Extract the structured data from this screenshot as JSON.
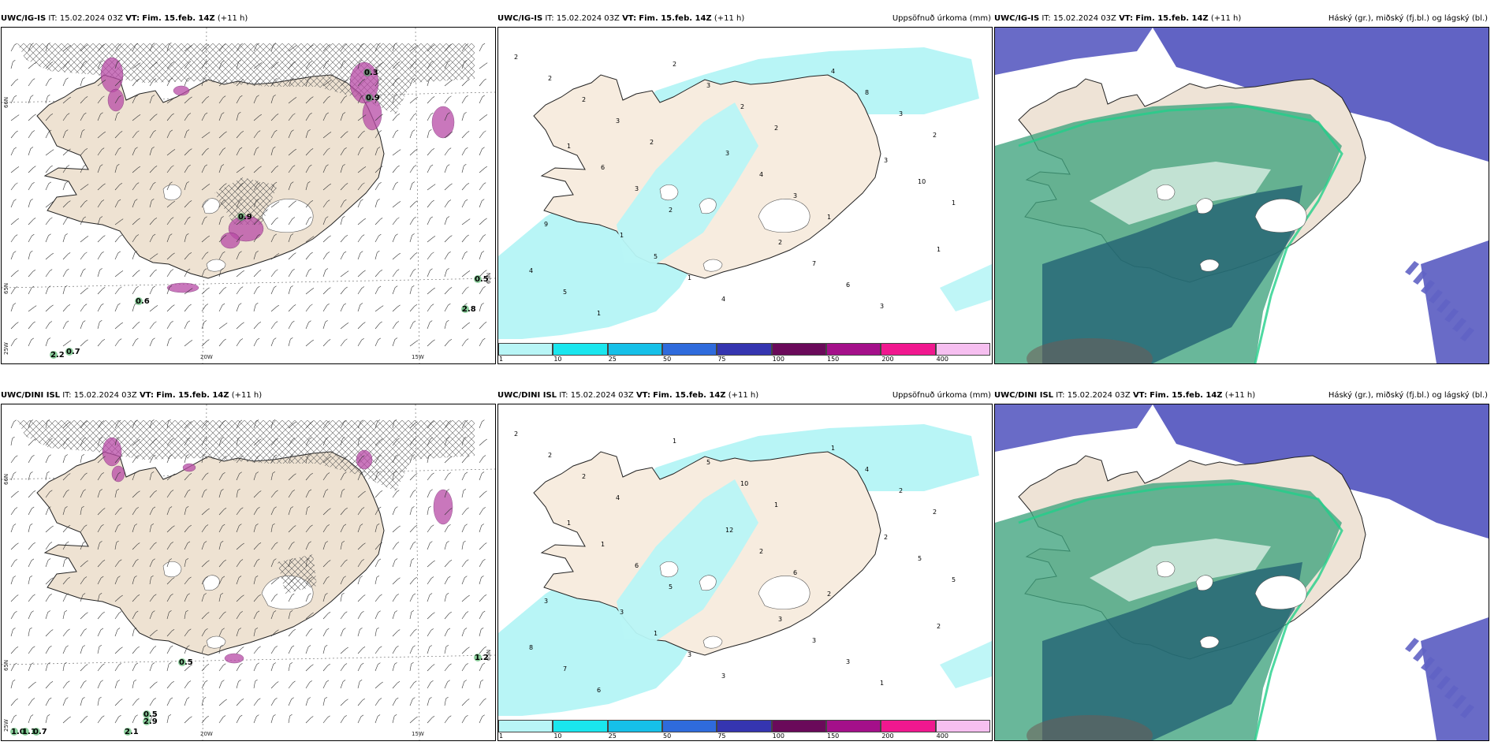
{
  "rows": [
    {
      "panels": [
        {
          "model": "UWC/IG-IS",
          "it_label": "IT:",
          "it": "15.02.2024 03Z",
          "vt_label": "VT:",
          "vt": "Fim. 15.feb. 14Z",
          "lead": "(+11 h)",
          "right_title": ""
        },
        {
          "model": "UWC/IG-IS",
          "it_label": "IT:",
          "it": "15.02.2024 03Z",
          "vt_label": "VT:",
          "vt": "Fim. 15.feb. 14Z",
          "lead": "(+11 h)",
          "right_title": "Uppsöfnuð úrkoma (mm)"
        },
        {
          "model": "UWC/IG-IS",
          "it_label": "IT:",
          "it": "15.02.2024 03Z",
          "vt_label": "VT:",
          "vt": "Fim. 15.feb. 14Z",
          "lead": "(+11 h)",
          "right_title": "Háský (gr.), miðský (fj.bl.) og lágský (bl.)"
        }
      ],
      "wind_values": [
        "0.6",
        "0.5",
        "2.8",
        "2.2",
        "0.7",
        "0.3",
        "0.9",
        "0.9"
      ],
      "precip_numbers": [
        "2",
        "1",
        "1",
        "2",
        "3",
        "2",
        "4",
        "3",
        "1",
        "2",
        "6",
        "5",
        "3",
        "4",
        "7",
        "8",
        "10",
        "4",
        "2",
        "3",
        "1",
        "2",
        "3",
        "6",
        "3",
        "1",
        "5",
        "3",
        "2",
        "4",
        "2",
        "1",
        "3",
        "2",
        "9",
        "1",
        "2"
      ]
    },
    {
      "panels": [
        {
          "model": "UWC/DINI ISL",
          "it_label": "IT:",
          "it": "15.02.2024 03Z",
          "vt_label": "VT:",
          "vt": "Fim. 15.feb. 14Z",
          "lead": "(+11 h)",
          "right_title": ""
        },
        {
          "model": "UWC/DINI ISL",
          "it_label": "IT:",
          "it": "15.02.2024 03Z",
          "vt_label": "VT:",
          "vt": "Fim. 15.feb. 14Z",
          "lead": "(+11 h)",
          "right_title": "Uppsöfnuð úrkoma (mm)"
        },
        {
          "model": "UWC/DINI ISL",
          "it_label": "IT:",
          "it": "15.02.2024 03Z",
          "vt_label": "VT:",
          "vt": "Fim. 15.feb. 14Z",
          "lead": "(+11 h)",
          "right_title": "Háský (gr.), miðský (fj.bl.) og lágský (bl.)"
        }
      ],
      "wind_values": [
        "0.5",
        "1.2",
        "0.5",
        "2.9",
        "2.1",
        "1.0",
        "1.1",
        "0.7"
      ],
      "precip_numbers": [
        "2",
        "1",
        "3",
        "1",
        "12",
        "3",
        "1",
        "2",
        "2",
        "2",
        "1",
        "1",
        "5",
        "2",
        "3",
        "4",
        "5",
        "8",
        "2",
        "6",
        "3",
        "10",
        "6",
        "3",
        "2",
        "5",
        "7",
        "4",
        "5",
        "3",
        "1",
        "2",
        "1",
        "2",
        "3",
        "6"
      ]
    }
  ],
  "wind_map": {
    "lat_labels": [
      "66N",
      "65N"
    ],
    "lat_labels_right": [
      "65N"
    ],
    "lon_labels": [
      "20W",
      "15W",
      "25W"
    ]
  },
  "precip_map": {
    "colorbar_ticks": [
      "1",
      "10",
      "25",
      "50",
      "75",
      "100",
      "150",
      "200",
      "400"
    ],
    "colorbar_colors": [
      "#b8f5f6",
      "#1ae6ee",
      "#16c0e8",
      "#2f6bdc",
      "#3535b0",
      "#6a0a5a",
      "#a4108a",
      "#f0188f",
      "#f6bff0"
    ]
  },
  "cloud_map": {
    "colors": {
      "high": "#6163c4",
      "mid": "#3fa37e",
      "low": "#1f5d72",
      "land": "#eee3d6",
      "sea": "#ffffff"
    }
  },
  "colors": {
    "land_beige": "#eee2d2",
    "precip_cyan": "#b8f5f6",
    "snow_purple": "#b84aa6",
    "green_marker": "#2ea64a"
  }
}
